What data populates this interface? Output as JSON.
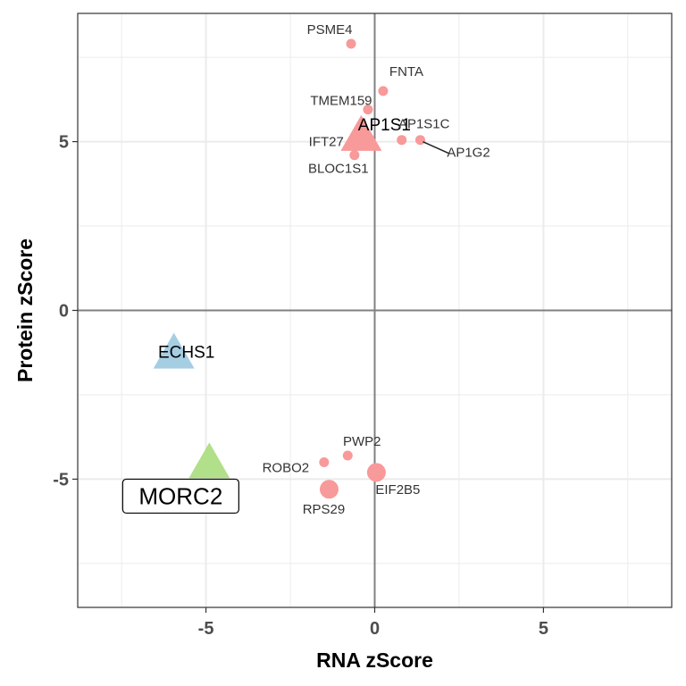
{
  "chart_data": {
    "type": "scatter",
    "xlabel": "RNA zScore",
    "ylabel": "Protein zScore",
    "xlim": [
      -8.8,
      8.8
    ],
    "ylim": [
      -8.8,
      8.8
    ],
    "x_ticks": [
      -5,
      0,
      5
    ],
    "y_ticks": [
      -5,
      0,
      5
    ],
    "x_tick_labels": [
      "-5",
      "0",
      "5"
    ],
    "y_tick_labels": [
      "-5",
      "0",
      "5"
    ],
    "grid": true,
    "legend": "none",
    "colors": {
      "points": "#f8999a",
      "echs1": "#a6cee3",
      "morc2": "#b2df8a",
      "reference_lines": "#808080",
      "grid": "#ebebeb"
    },
    "points": [
      {
        "label": "PSME4",
        "x": -0.7,
        "y": 7.9,
        "shape": "circle",
        "size": "small"
      },
      {
        "label": "FNTA",
        "x": 0.25,
        "y": 6.5,
        "shape": "circle",
        "size": "small"
      },
      {
        "label": "TMEM159",
        "x": -0.2,
        "y": 5.95,
        "shape": "circle",
        "size": "small"
      },
      {
        "label": "AP1S1",
        "x": -0.4,
        "y": 5.15,
        "shape": "triangle",
        "size": "large",
        "style": "large"
      },
      {
        "label": "IFT27",
        "x": -0.35,
        "y": 5.0,
        "shape": "circle",
        "size": "medium"
      },
      {
        "label": "AP1S1C",
        "x": 0.8,
        "y": 5.05,
        "shape": "circle",
        "size": "small"
      },
      {
        "label": "AP1G2",
        "x": 1.35,
        "y": 5.05,
        "shape": "circle",
        "size": "small"
      },
      {
        "label": "BLOC1S1",
        "x": -0.6,
        "y": 4.6,
        "shape": "circle",
        "size": "small"
      },
      {
        "label": "ECHS1",
        "x": -5.95,
        "y": -1.3,
        "shape": "triangle",
        "size": "large",
        "style": "large",
        "color": "echs1"
      },
      {
        "label": "MORC2",
        "x": -4.9,
        "y": -4.55,
        "shape": "triangle",
        "size": "large",
        "style": "boxed",
        "color": "morc2"
      },
      {
        "label": "PWP2",
        "x": -0.8,
        "y": -4.3,
        "shape": "circle",
        "size": "small"
      },
      {
        "label": "ROBO2",
        "x": -1.5,
        "y": -4.5,
        "shape": "circle",
        "size": "small"
      },
      {
        "label": "EIF2B5",
        "x": 0.05,
        "y": -4.8,
        "shape": "circle",
        "size": "large"
      },
      {
        "label": "RPS29",
        "x": -1.35,
        "y": -5.3,
        "shape": "circle",
        "size": "large"
      }
    ]
  }
}
